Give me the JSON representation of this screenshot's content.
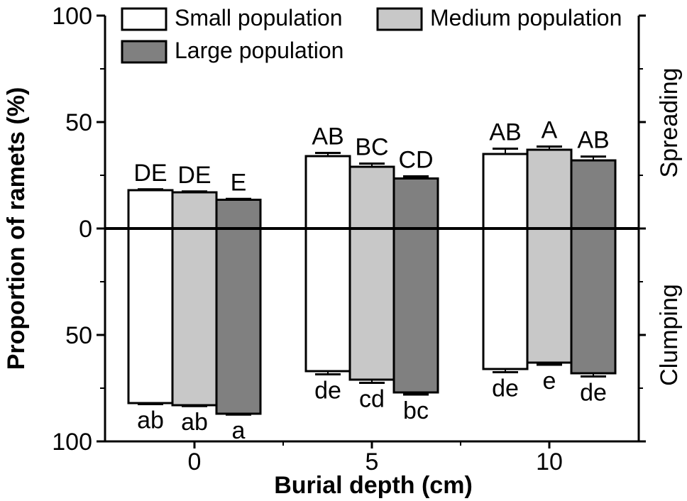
{
  "chart_data": {
    "type": "bar",
    "orientation": "diverging",
    "categories": [
      "0",
      "5",
      "10"
    ],
    "xlabel": "Burial depth (cm)",
    "ylabel": "Proportion of ramets (%)",
    "ylim": [
      -100,
      100
    ],
    "yticks": [
      -100,
      -50,
      0,
      50,
      100
    ],
    "ytick_labels": [
      "100",
      "50",
      "0",
      "50",
      "100"
    ],
    "upper_label": "Spreading",
    "lower_label": "Clumping",
    "series": [
      {
        "name": "Small population",
        "color": "#ffffff",
        "spreading": [
          18,
          34,
          35
        ],
        "spreading_err": [
          0.4,
          1.5,
          2.5
        ],
        "spreading_labels": [
          "DE",
          "AB",
          "AB"
        ],
        "clumping": [
          82,
          67,
          66
        ],
        "clumping_err": [
          0.5,
          1.5,
          1.5
        ],
        "clumping_labels": [
          "ab",
          "de",
          "de"
        ]
      },
      {
        "name": "Medium population",
        "color": "#c8c8c8",
        "spreading": [
          17,
          29,
          37
        ],
        "spreading_err": [
          0.4,
          1.5,
          1.5
        ],
        "spreading_labels": [
          "DE",
          "BC",
          "A"
        ],
        "clumping": [
          83,
          71,
          63
        ],
        "clumping_err": [
          0.4,
          1.5,
          1.0
        ],
        "clumping_labels": [
          "ab",
          "cd",
          "e"
        ]
      },
      {
        "name": "Large population",
        "color": "#808080",
        "spreading": [
          13.5,
          23.5,
          32
        ],
        "spreading_err": [
          0.4,
          1.0,
          1.8
        ],
        "spreading_labels": [
          "E",
          "CD",
          "AB"
        ],
        "clumping": [
          87,
          77,
          68
        ],
        "clumping_err": [
          0.4,
          1.0,
          1.5
        ],
        "clumping_labels": [
          "a",
          "bc",
          "de"
        ]
      }
    ],
    "legend": {
      "position": "top-left"
    }
  }
}
